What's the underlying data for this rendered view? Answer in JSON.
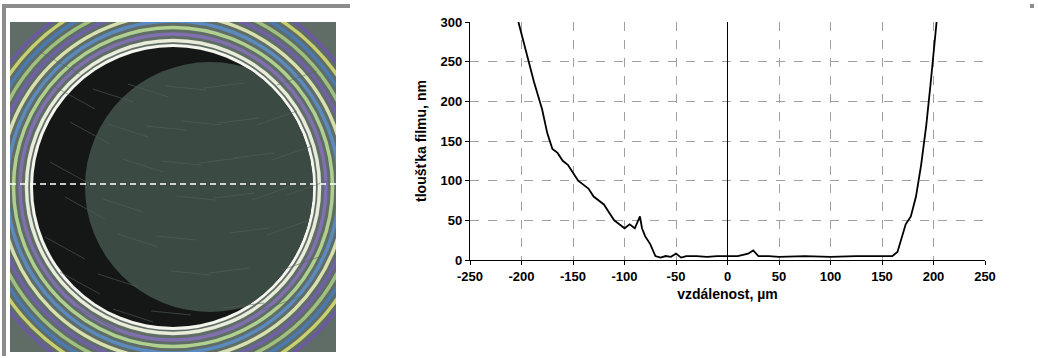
{
  "chart_data": {
    "type": "line",
    "x_label": "vzdálenost, µm",
    "y_label": "tloušťka filmu, nm",
    "x": [
      -203,
      -195,
      -188,
      -180,
      -175,
      -170,
      -165,
      -160,
      -155,
      -150,
      -145,
      -140,
      -135,
      -130,
      -125,
      -120,
      -115,
      -110,
      -105,
      -100,
      -95,
      -90,
      -85,
      -83,
      -80,
      -75,
      -70,
      -65,
      -60,
      -55,
      -50,
      -45,
      -40,
      -30,
      -20,
      -10,
      0,
      10,
      20,
      25,
      30,
      40,
      50,
      75,
      100,
      125,
      150,
      160,
      165,
      170,
      173,
      178,
      183,
      188,
      193,
      197,
      200,
      203
    ],
    "values": [
      300,
      260,
      225,
      190,
      160,
      140,
      135,
      125,
      120,
      110,
      100,
      95,
      90,
      80,
      75,
      70,
      60,
      50,
      45,
      40,
      45,
      40,
      55,
      40,
      30,
      20,
      5,
      3,
      5,
      4,
      8,
      3,
      5,
      5,
      4,
      5,
      5,
      5,
      8,
      12,
      5,
      5,
      4,
      5,
      4,
      5,
      5,
      5,
      10,
      30,
      45,
      55,
      80,
      120,
      170,
      220,
      260,
      300
    ],
    "color": "#000000",
    "xlim": [
      -250,
      250
    ],
    "ylim": [
      0,
      300
    ],
    "xticks": [
      -250,
      -200,
      -150,
      -100,
      -50,
      0,
      50,
      100,
      150,
      200,
      250
    ],
    "yticks": [
      0,
      50,
      100,
      150,
      200,
      250,
      300
    ],
    "grid": true
  }
}
